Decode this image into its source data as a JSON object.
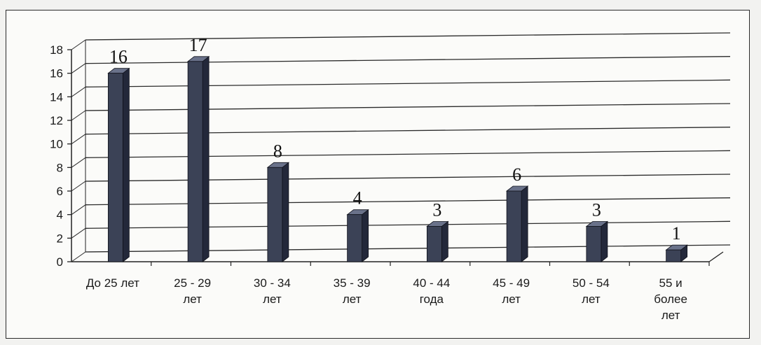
{
  "chart_data": {
    "type": "bar",
    "style": "3d-column",
    "categories": [
      [
        "До 25 лет"
      ],
      [
        "25 - 29",
        "лет"
      ],
      [
        "30 - 34",
        "лет"
      ],
      [
        "35 - 39",
        "лет"
      ],
      [
        "40 - 44",
        "года"
      ],
      [
        "45 - 49",
        "лет"
      ],
      [
        "50 - 54",
        "лет"
      ],
      [
        "55 и",
        "более",
        "лет"
      ]
    ],
    "values": [
      16,
      17,
      8,
      4,
      3,
      6,
      3,
      1
    ],
    "data_labels": [
      "16",
      "17",
      "8",
      "4",
      "3",
      "6",
      "3",
      "1"
    ],
    "yticks": [
      "0",
      "2",
      "4",
      "6",
      "8",
      "10",
      "12",
      "14",
      "16",
      "18"
    ],
    "ylim": [
      0,
      18
    ],
    "title": "",
    "xlabel": "",
    "ylabel": "",
    "grid": "horizontal",
    "legend": "none",
    "bar_color": "#3b4256",
    "bar_side_color": "#23283a",
    "bar_top_color": "#6a728a"
  }
}
